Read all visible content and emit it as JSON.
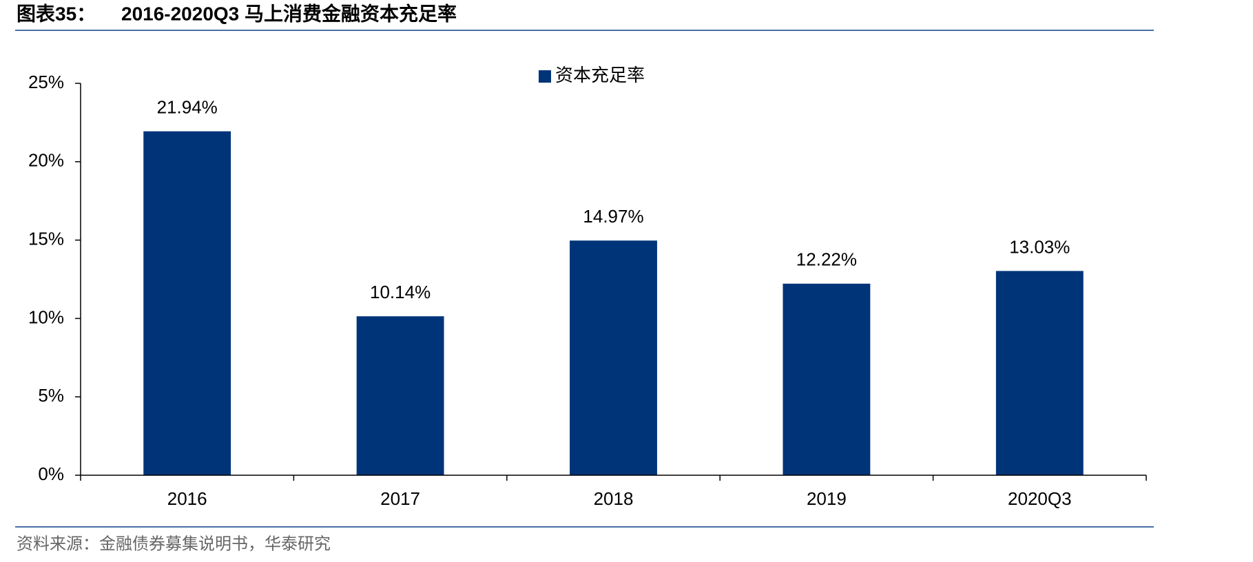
{
  "chart_data": {
    "type": "bar",
    "label": "图表35：",
    "title": "2016-2020Q3 马上消费金融资本充足率",
    "source": "资料来源：金融债券募集说明书，华泰研究",
    "categories": [
      "2016",
      "2017",
      "2018",
      "2019",
      "2020Q3"
    ],
    "series": [
      {
        "name": "资本充足率",
        "color": "#003478",
        "values": [
          21.94,
          10.14,
          14.97,
          12.22,
          13.03
        ],
        "value_labels": [
          "21.94%",
          "10.14%",
          "14.97%",
          "12.22%",
          "13.03%"
        ]
      }
    ],
    "ylim": [
      0,
      25
    ],
    "yticks": [
      {
        "value": 0,
        "label": "0%"
      },
      {
        "value": 5,
        "label": "5%"
      },
      {
        "value": 10,
        "label": "10%"
      },
      {
        "value": 15,
        "label": "15%"
      },
      {
        "value": 20,
        "label": "20%"
      },
      {
        "value": 25,
        "label": "25%"
      }
    ],
    "legend": "top",
    "grid": false
  }
}
